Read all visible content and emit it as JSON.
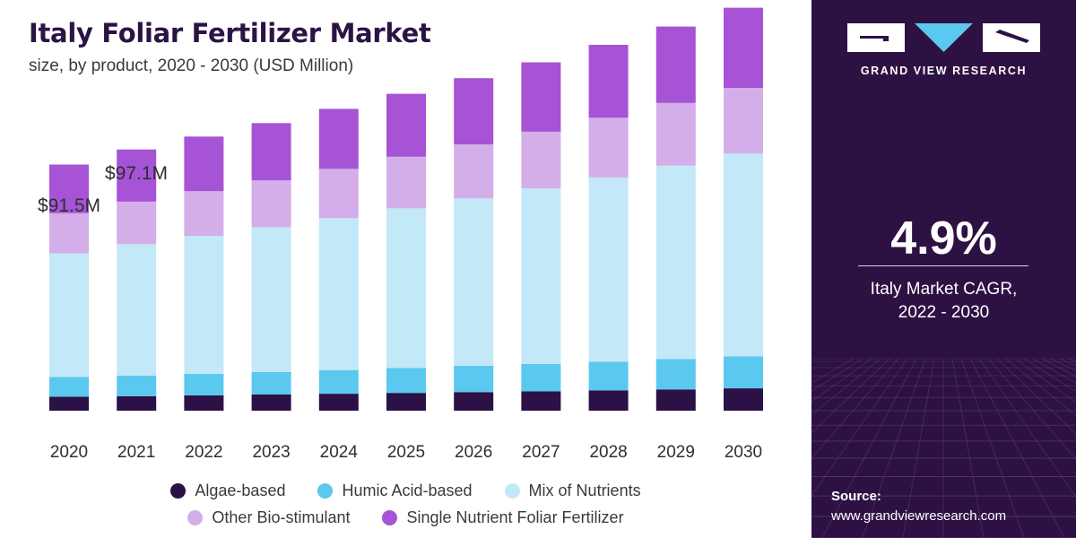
{
  "title": "Italy Foliar Fertilizer Market",
  "subtitle": "size, by product, 2020 - 2030 (USD Million)",
  "chart_data": {
    "type": "bar",
    "stacked": true,
    "title": "Italy Foliar Fertilizer Market",
    "subtitle": "size, by product, 2020 - 2030 (USD Million)",
    "categories": [
      "2020",
      "2021",
      "2022",
      "2023",
      "2024",
      "2025",
      "2026",
      "2027",
      "2028",
      "2029",
      "2030"
    ],
    "series": [
      {
        "name": "Algae-based",
        "color": "#2b1145",
        "values": [
          5.2,
          5.4,
          5.7,
          6.0,
          6.3,
          6.6,
          6.9,
          7.2,
          7.5,
          7.9,
          8.3
        ]
      },
      {
        "name": "Humic Acid-based",
        "color": "#5bc8ef",
        "values": [
          7.3,
          7.6,
          8.0,
          8.4,
          8.8,
          9.3,
          9.8,
          10.2,
          10.7,
          11.3,
          11.9
        ]
      },
      {
        "name": "Mix of Nutrients",
        "color": "#c3e8f7",
        "values": [
          46.0,
          48.9,
          51.3,
          53.8,
          56.5,
          59.3,
          62.2,
          65.2,
          68.5,
          71.9,
          75.4
        ]
      },
      {
        "name": "Other Bio-stimulant",
        "color": "#d4aee8",
        "values": [
          14.9,
          15.8,
          16.6,
          17.4,
          18.3,
          19.2,
          20.1,
          21.1,
          22.2,
          23.3,
          24.4
        ]
      },
      {
        "name": "Single Nutrient Foliar Fertilizer",
        "color": "#a653d6",
        "values": [
          18.1,
          19.4,
          20.3,
          21.3,
          22.3,
          23.4,
          24.6,
          25.8,
          27.1,
          28.4,
          29.8
        ]
      }
    ],
    "data_labels": [
      {
        "category": "2020",
        "text": "$91.5M"
      },
      {
        "category": "2021",
        "text": "$97.1M"
      }
    ],
    "ylim": [
      0,
      150
    ],
    "grid": false,
    "legend_position": "bottom"
  },
  "sidebar": {
    "brand": "GRAND VIEW RESEARCH",
    "cagr_value": "4.9%",
    "cagr_label_line1": "Italy Market CAGR,",
    "cagr_label_line2": "2022 - 2030",
    "source_label": "Source:",
    "source_url": "www.grandviewresearch.com",
    "background_color": "#2e1143"
  }
}
